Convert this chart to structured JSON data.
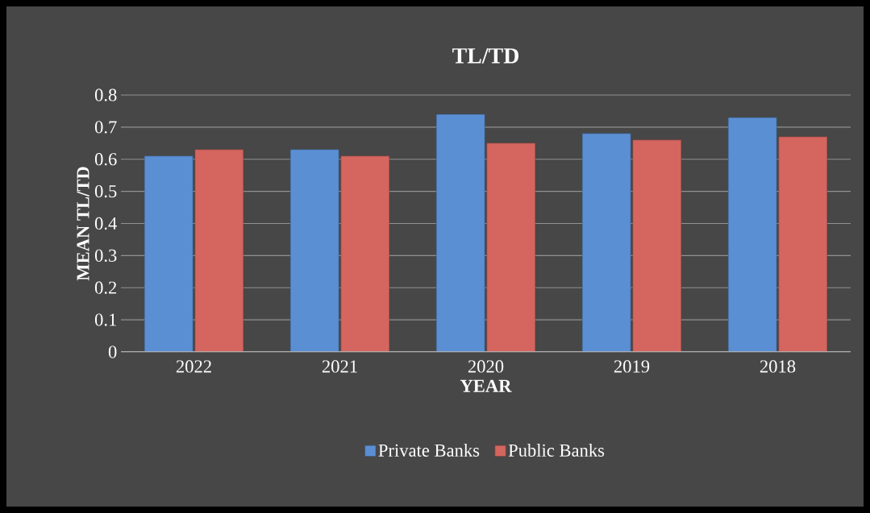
{
  "chart_data": {
    "type": "bar",
    "title": "TL/TD",
    "xlabel": "YEAR",
    "ylabel": "MEAN TL/TD",
    "categories": [
      "2022",
      "2021",
      "2020",
      "2019",
      "2018"
    ],
    "series": [
      {
        "name": "Private Banks",
        "color": "#5b8fd4",
        "values": [
          0.61,
          0.63,
          0.74,
          0.68,
          0.73
        ]
      },
      {
        "name": "Public Banks",
        "color": "#d4665f",
        "values": [
          0.63,
          0.61,
          0.65,
          0.66,
          0.67
        ]
      }
    ],
    "ylim": [
      0,
      0.8
    ],
    "yticks": [
      0,
      0.1,
      0.2,
      0.3,
      0.4,
      0.5,
      0.6,
      0.7,
      0.8
    ],
    "grid": "y",
    "legend": "bottom"
  }
}
